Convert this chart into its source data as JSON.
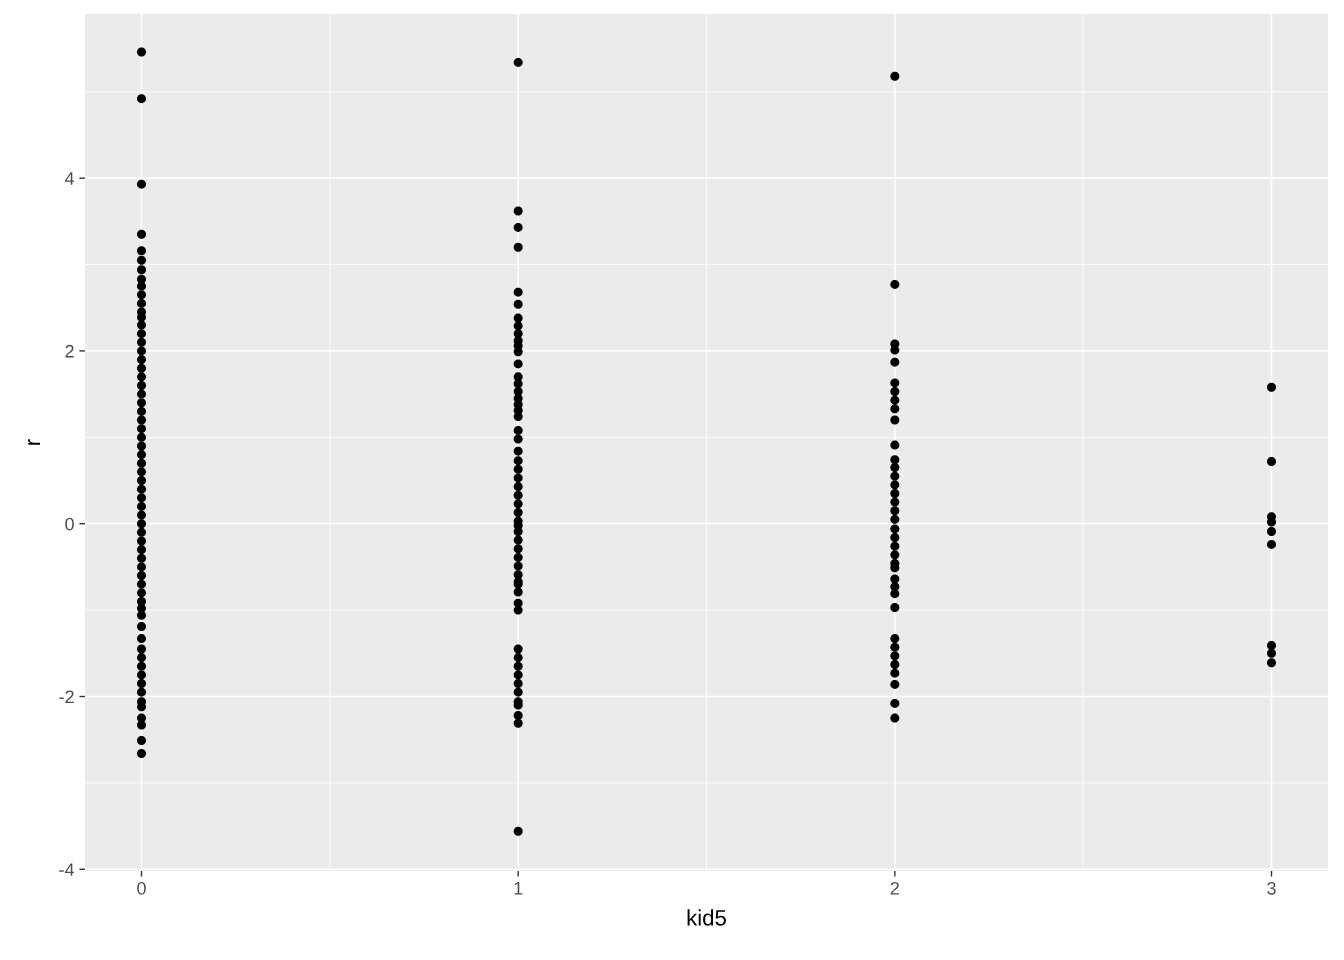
{
  "chart_data": {
    "type": "scatter",
    "xlabel": "kid5",
    "ylabel": "r",
    "xlim": [
      -0.15,
      3.15
    ],
    "xticks": [
      0,
      1,
      2,
      3
    ],
    "ylim": [
      -4.02,
      5.9
    ],
    "yticks": [
      -4,
      -2,
      0,
      2,
      4
    ],
    "grid": true,
    "marker": "circle",
    "series": [
      {
        "color": "#000000",
        "x": [
          0,
          0,
          0,
          0,
          0,
          0,
          0,
          0,
          0,
          0,
          0,
          0,
          0,
          0,
          0,
          0,
          0,
          0,
          0,
          0,
          0,
          0,
          0,
          0,
          0,
          0,
          0,
          0,
          0,
          0,
          0,
          0,
          0,
          0,
          0,
          0,
          0,
          0,
          0,
          0,
          0,
          0,
          0,
          0,
          0,
          0,
          0,
          0,
          0,
          0,
          0,
          0,
          0,
          0,
          0,
          0,
          0,
          0,
          0,
          0,
          0,
          0,
          1,
          1,
          1,
          1,
          1,
          1,
          1,
          1,
          1,
          1,
          1,
          1,
          1,
          1,
          1,
          1,
          1,
          1,
          1,
          1,
          1,
          1,
          1,
          1,
          1,
          1,
          1,
          1,
          1,
          1,
          1,
          1,
          1,
          1,
          1,
          1,
          1,
          1,
          1,
          1,
          1,
          1,
          1,
          1,
          1,
          1,
          1,
          1,
          1,
          1,
          1,
          1,
          1,
          1,
          2,
          2,
          2,
          2,
          2,
          2,
          2,
          2,
          2,
          2,
          2,
          2,
          2,
          2,
          2,
          2,
          2,
          2,
          2,
          2,
          2,
          2,
          2,
          2,
          2,
          2,
          2,
          2,
          2,
          2,
          2,
          2,
          2,
          2,
          2,
          2,
          2,
          3,
          3,
          3,
          3,
          3,
          3,
          3,
          3,
          3
        ],
        "values": [
          5.46,
          4.92,
          3.93,
          3.35,
          3.16,
          3.05,
          2.94,
          2.83,
          2.75,
          2.65,
          2.55,
          2.45,
          2.39,
          2.3,
          2.2,
          2.1,
          2.0,
          1.9,
          1.8,
          1.7,
          1.6,
          1.5,
          1.4,
          1.3,
          1.2,
          1.1,
          1.0,
          0.9,
          0.8,
          0.7,
          0.6,
          0.5,
          0.4,
          0.3,
          0.2,
          0.1,
          0.0,
          -0.1,
          -0.2,
          -0.3,
          -0.4,
          -0.5,
          -0.6,
          -0.7,
          -0.8,
          -0.9,
          -0.98,
          -1.06,
          -1.19,
          -1.33,
          -1.45,
          -1.55,
          -1.65,
          -1.75,
          -1.85,
          -1.95,
          -2.06,
          -2.12,
          -2.33,
          -2.51,
          -2.66,
          -2.25,
          5.34,
          3.62,
          3.43,
          3.2,
          2.68,
          2.54,
          2.38,
          2.29,
          2.2,
          2.12,
          2.06,
          1.99,
          1.85,
          1.7,
          1.62,
          1.53,
          1.45,
          1.38,
          1.31,
          1.24,
          1.08,
          0.98,
          0.84,
          0.73,
          0.63,
          0.53,
          0.43,
          0.33,
          0.23,
          0.13,
          0.03,
          -0.02,
          -0.09,
          -0.19,
          -0.29,
          -0.39,
          -0.49,
          -0.59,
          -0.67,
          -0.79,
          -0.92,
          -1.0,
          -1.45,
          -1.55,
          -1.65,
          -1.75,
          -1.85,
          -1.95,
          -2.06,
          -2.1,
          -2.22,
          -2.31,
          -3.56,
          -0.7,
          5.18,
          2.77,
          2.08,
          2.01,
          1.87,
          1.63,
          1.53,
          1.43,
          1.33,
          1.2,
          0.91,
          0.74,
          0.65,
          0.55,
          0.45,
          0.35,
          0.25,
          0.15,
          0.05,
          -0.06,
          -0.16,
          -0.26,
          -0.36,
          -0.46,
          -0.51,
          -0.64,
          -0.73,
          -0.81,
          -0.97,
          -1.33,
          -1.43,
          -1.53,
          -1.63,
          -1.73,
          -1.86,
          -2.08,
          -2.25,
          1.58,
          0.72,
          0.08,
          0.02,
          -0.09,
          -0.24,
          -1.41,
          -1.5,
          -1.61
        ]
      }
    ]
  }
}
